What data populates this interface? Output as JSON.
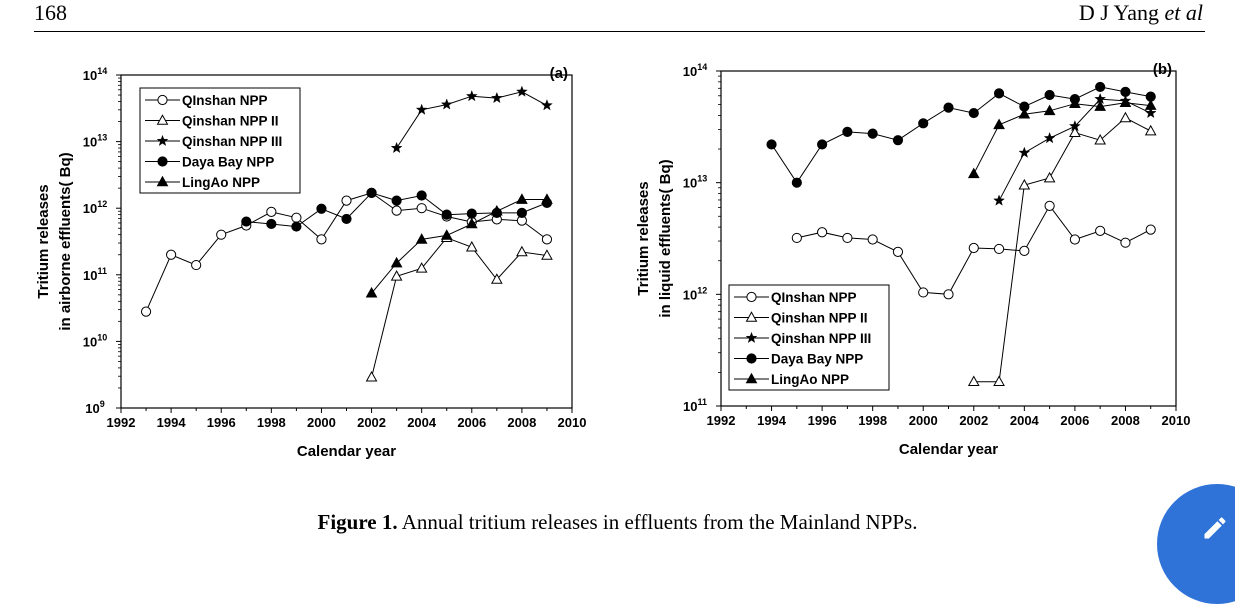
{
  "page": {
    "page_number": "168",
    "author_main": "D J Yang",
    "author_etal": "et al"
  },
  "caption": {
    "label": "Figure 1.",
    "text": "Annual tritium releases in effluents from the Mainland NPPs."
  },
  "edit_button": {
    "icon": "pencil-icon",
    "color": "#2f73d9"
  },
  "chart_data": [
    {
      "type": "line",
      "panel_label": "(a)",
      "xlabel": "Calendar year",
      "ylabel_line1": "Tritium releases",
      "ylabel_line2": "in airborne effluents(  Bq)",
      "xlim": [
        1992,
        2010
      ],
      "xticks": [
        "1992",
        "1994",
        "1996",
        "1998",
        "2000",
        "2002",
        "2004",
        "2006",
        "2008",
        "2010"
      ],
      "ylim_exp": [
        9,
        14
      ],
      "y_scale": "log",
      "yticks_exp": [
        "9",
        "10",
        "11",
        "12",
        "13",
        "14"
      ],
      "legend_position": "top-left",
      "series": [
        {
          "name": "QInshan NPP",
          "marker": "circle-open",
          "x": [
            1993,
            1994,
            1995,
            1996,
            1997,
            1998,
            1999,
            2000,
            2001,
            2002,
            2003,
            2004,
            2005,
            2006,
            2007,
            2008,
            2009
          ],
          "y": [
            28000000000.0,
            200000000000.0,
            140000000000.0,
            400000000000.0,
            550000000000.0,
            880000000000.0,
            720000000000.0,
            340000000000.0,
            1300000000000.0,
            1700000000000.0,
            920000000000.0,
            1000000000000.0,
            750000000000.0,
            620000000000.0,
            680000000000.0,
            650000000000.0,
            340000000000.0
          ]
        },
        {
          "name": "Qinshan NPP II",
          "marker": "triangle-open",
          "x": [
            2002,
            2003,
            2004,
            2005,
            2006,
            2007,
            2008,
            2009
          ],
          "y": [
            2900000000.0,
            95000000000.0,
            125000000000.0,
            360000000000.0,
            260000000000.0,
            85000000000.0,
            220000000000.0,
            195000000000.0
          ]
        },
        {
          "name": "Qinshan NPP III",
          "marker": "star",
          "x": [
            2003,
            2004,
            2005,
            2006,
            2007,
            2008,
            2009
          ],
          "y": [
            8000000000000.0,
            30000000000000.0,
            36000000000000.0,
            48000000000000.0,
            45000000000000.0,
            56000000000000.0,
            35000000000000.0
          ]
        },
        {
          "name": "Daya Bay NPP",
          "marker": "circle-filled",
          "x": [
            1997,
            1998,
            1999,
            2000,
            2001,
            2002,
            2003,
            2004,
            2005,
            2006,
            2007,
            2008,
            2009
          ],
          "y": [
            630000000000.0,
            580000000000.0,
            530000000000.0,
            980000000000.0,
            690000000000.0,
            1700000000000.0,
            1300000000000.0,
            1550000000000.0,
            800000000000.0,
            830000000000.0,
            850000000000.0,
            850000000000.0,
            1200000000000.0
          ]
        },
        {
          "name": "LingAo NPP",
          "marker": "triangle-filled",
          "x": [
            2002,
            2003,
            2004,
            2005,
            2006,
            2007,
            2008,
            2009
          ],
          "y": [
            53000000000.0,
            150000000000.0,
            340000000000.0,
            390000000000.0,
            580000000000.0,
            900000000000.0,
            1350000000000.0,
            1350000000000.0
          ]
        }
      ]
    },
    {
      "type": "line",
      "panel_label": "(b)",
      "xlabel": "Calendar year",
      "ylabel_line1": "Tritium releases",
      "ylabel_line2": "in liquid effluents(  Bq)",
      "xlim": [
        1992,
        2010
      ],
      "xticks": [
        "1992",
        "1994",
        "1996",
        "1998",
        "2000",
        "2002",
        "2004",
        "2006",
        "2008",
        "2010"
      ],
      "ylim_exp": [
        11,
        14
      ],
      "y_scale": "log",
      "yticks_exp": [
        "11",
        "12",
        "13",
        "14"
      ],
      "legend_position": "bottom-left",
      "series": [
        {
          "name": "QInshan NPP",
          "marker": "circle-open",
          "x": [
            1995,
            1996,
            1997,
            1998,
            1999,
            2000,
            2001,
            2002,
            2003,
            2004,
            2005,
            2006,
            2007,
            2008,
            2009
          ],
          "y": [
            3200000000000.0,
            3600000000000.0,
            3200000000000.0,
            3100000000000.0,
            2400000000000.0,
            1040000000000.0,
            1000000000000.0,
            2600000000000.0,
            2550000000000.0,
            2450000000000.0,
            6200000000000.0,
            3100000000000.0,
            3700000000000.0,
            2900000000000.0,
            3800000000000.0
          ]
        },
        {
          "name": "Qinshan NPP II",
          "marker": "triangle-open",
          "x": [
            2002,
            2003,
            2004,
            2005,
            2006,
            2007,
            2008,
            2009
          ],
          "y": [
            165000000000.0,
            165000000000.0,
            9500000000000.0,
            11000000000000.0,
            28000000000000.0,
            24000000000000.0,
            38000000000000.0,
            29000000000000.0
          ]
        },
        {
          "name": "Qinshan NPP III",
          "marker": "star",
          "x": [
            2003,
            2004,
            2005,
            2006,
            2007,
            2008,
            2009
          ],
          "y": [
            6900000000000.0,
            18500000000000.0,
            25000000000000.0,
            32000000000000.0,
            56000000000000.0,
            54000000000000.0,
            42000000000000.0
          ]
        },
        {
          "name": "Daya Bay NPP",
          "marker": "circle-filled",
          "x": [
            1994,
            1995,
            1996,
            1997,
            1998,
            1999,
            2000,
            2001,
            2002,
            2003,
            2004,
            2005,
            2006,
            2007,
            2008,
            2009
          ],
          "y": [
            22000000000000.0,
            10000000000000.0,
            22000000000000.0,
            28500000000000.0,
            27500000000000.0,
            24000000000000.0,
            34000000000000.0,
            47000000000000.0,
            42000000000000.0,
            63000000000000.0,
            48000000000000.0,
            61000000000000.0,
            56000000000000.0,
            72000000000000.0,
            65000000000000.0,
            59000000000000.0
          ]
        },
        {
          "name": "LingAo NPP",
          "marker": "triangle-filled",
          "x": [
            2002,
            2003,
            2004,
            2005,
            2006,
            2007,
            2008,
            2009
          ],
          "y": [
            12000000000000.0,
            33000000000000.0,
            41000000000000.0,
            44000000000000.0,
            51000000000000.0,
            48000000000000.0,
            52000000000000.0,
            49000000000000.0
          ]
        }
      ]
    }
  ]
}
